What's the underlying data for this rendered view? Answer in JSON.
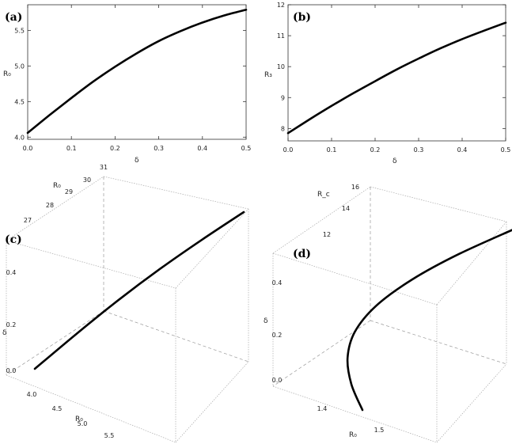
{
  "chart_data": [
    {
      "panel": "(a)",
      "type": "line",
      "xlabel": "δ",
      "ylabel": "R₀",
      "xlim": [
        0,
        0.5
      ],
      "ylim": [
        3.97,
        5.86
      ],
      "x_ticks": [
        "0.0",
        "0.1",
        "0.2",
        "0.3",
        "0.4",
        "0.5"
      ],
      "y_ticks": [
        "4.0",
        "4.5",
        "5.0",
        "5.5"
      ],
      "series": [
        {
          "x": [
            0.0,
            0.05,
            0.1,
            0.15,
            0.2,
            0.25,
            0.3,
            0.35,
            0.4,
            0.45,
            0.5
          ],
          "y": [
            4.06,
            4.31,
            4.55,
            4.78,
            4.99,
            5.18,
            5.35,
            5.49,
            5.61,
            5.71,
            5.79
          ]
        }
      ]
    },
    {
      "panel": "(b)",
      "type": "line",
      "xlabel": "δ",
      "ylabel": "R₃",
      "xlim": [
        0,
        0.5
      ],
      "ylim": [
        7.6,
        12.0
      ],
      "x_ticks": [
        "0.0",
        "0.1",
        "0.2",
        "0.3",
        "0.4",
        "0.5"
      ],
      "y_ticks": [
        "8",
        "9",
        "10",
        "11",
        "12"
      ],
      "series": [
        {
          "x": [
            0.0,
            0.05,
            0.1,
            0.15,
            0.2,
            0.25,
            0.3,
            0.35,
            0.4,
            0.45,
            0.5
          ],
          "y": [
            7.85,
            8.3,
            8.73,
            9.14,
            9.53,
            9.91,
            10.26,
            10.59,
            10.89,
            11.16,
            11.42
          ]
        }
      ]
    },
    {
      "panel": "(c)",
      "type": "line3d",
      "axis_labels": {
        "x": "R₀",
        "y": "R₀",
        "z": "δ"
      },
      "x_ticks": [
        "4.0",
        "4.5",
        "5.0",
        "5.5"
      ],
      "y_ticks": [
        "27",
        "28",
        "29",
        "30",
        "31"
      ],
      "z_ticks": [
        "0.0",
        "0.2",
        "0.4"
      ],
      "series": [
        {
          "x": [
            4.06,
            4.55,
            4.99,
            5.35,
            5.61,
            5.79
          ],
          "y": [
            26.6,
            27.5,
            28.4,
            29.2,
            30.0,
            30.6
          ],
          "z": [
            0.0,
            0.1,
            0.2,
            0.3,
            0.4,
            0.5
          ]
        }
      ]
    },
    {
      "panel": "(d)",
      "type": "line3d",
      "axis_labels": {
        "x": "R₀",
        "y": "R_c",
        "z": "δ"
      },
      "x_ticks": [
        "1.4",
        "1.5"
      ],
      "y_ticks": [
        "12",
        "14",
        "16"
      ],
      "z_ticks": [
        "0.0",
        "0.2",
        "0.4"
      ],
      "series": [
        {
          "x": [
            1.42,
            1.37,
            1.33,
            1.31,
            1.32,
            1.36,
            1.42,
            1.5
          ],
          "y": [
            10.8,
            11.6,
            12.5,
            13.4,
            14.2,
            15.0,
            15.7,
            16.3
          ],
          "z": [
            0.0,
            0.07,
            0.14,
            0.21,
            0.28,
            0.35,
            0.42,
            0.5
          ]
        }
      ]
    }
  ]
}
